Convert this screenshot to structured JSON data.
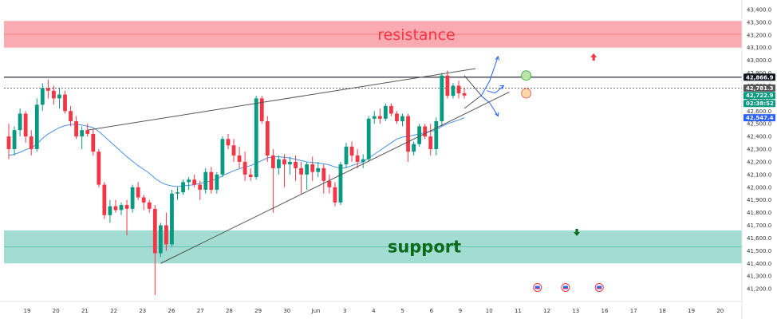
{
  "chart_data": {
    "type": "candlestick",
    "title": "",
    "xlabel": "",
    "ylabel": "",
    "ylim": [
      41100,
      43450
    ],
    "y_ticks": [
      "43,400.0",
      "43,300.0",
      "43,200.0",
      "43,100.0",
      "43,000.0",
      "42,900.0",
      "42,800.0",
      "42,700.0",
      "42,600.0",
      "42,500.0",
      "42,400.0",
      "42,300.0",
      "42,200.0",
      "42,100.0",
      "42,000.0",
      "41,900.0",
      "41,800.0",
      "41,700.0",
      "41,600.0",
      "41,500.0",
      "41,400.0",
      "41,300.0",
      "41,200.0"
    ],
    "y_tick_values": [
      43400,
      43300,
      43200,
      43100,
      43000,
      42900,
      42800,
      42700,
      42600,
      42500,
      42400,
      42300,
      42200,
      42100,
      42000,
      41900,
      41800,
      41700,
      41600,
      41500,
      41400,
      41300,
      41200
    ],
    "x_ticks": [
      "19",
      "20",
      "21",
      "22",
      "23",
      "26",
      "27",
      "28",
      "29",
      "30",
      "Jun",
      "3",
      "4",
      "5",
      "6",
      "9",
      "10",
      "11",
      "12",
      "13",
      "16",
      "17",
      "18",
      "19",
      "20"
    ],
    "price_tags": [
      {
        "text": "42,866.9",
        "value": 42866.9,
        "color": "#131722"
      },
      {
        "text": "42,781.3",
        "value": 42781.3,
        "color": "#555555"
      },
      {
        "text": "42,722.9",
        "value": 42722.9,
        "color": "#089981"
      },
      {
        "text": "02:38:52",
        "value": 42660,
        "color": "#089981"
      },
      {
        "text": "42,547.4",
        "value": 42547.4,
        "color": "#2962ff"
      }
    ],
    "zones": [
      {
        "label": "resistance",
        "from": 43100,
        "to": 43310,
        "color": "#f23645"
      },
      {
        "label": "support",
        "from": 41400,
        "to": 41660,
        "color": "#22ab94"
      }
    ],
    "horizontal_lines": [
      42866.9,
      42781.3
    ],
    "candles": [
      [
        42400,
        42500,
        42220,
        42300
      ],
      [
        42300,
        42480,
        42250,
        42450
      ],
      [
        42450,
        42620,
        42400,
        42580
      ],
      [
        42580,
        42600,
        42350,
        42400
      ],
      [
        42400,
        42450,
        42250,
        42300
      ],
      [
        42300,
        42700,
        42280,
        42650
      ],
      [
        42650,
        42820,
        42600,
        42780
      ],
      [
        42780,
        42850,
        42700,
        42760
      ],
      [
        42760,
        42800,
        42650,
        42700
      ],
      [
        42700,
        42780,
        42620,
        42730
      ],
      [
        42730,
        42760,
        42580,
        42600
      ],
      [
        42600,
        42640,
        42480,
        42520
      ],
      [
        42520,
        42560,
        42380,
        42400
      ],
      [
        42400,
        42480,
        42300,
        42450
      ],
      [
        42450,
        42500,
        42400,
        42420
      ],
      [
        42420,
        42460,
        42250,
        42280
      ],
      [
        42280,
        42300,
        42000,
        42020
      ],
      [
        42020,
        42040,
        41750,
        41780
      ],
      [
        41780,
        41900,
        41720,
        41850
      ],
      [
        41850,
        41900,
        41800,
        41820
      ],
      [
        41820,
        41880,
        41780,
        41860
      ],
      [
        41860,
        41900,
        41620,
        41830
      ],
      [
        41830,
        42020,
        41800,
        42000
      ],
      [
        42000,
        42040,
        41900,
        41920
      ],
      [
        41920,
        41940,
        41820,
        41880
      ],
      [
        41880,
        41900,
        41800,
        41830
      ],
      [
        41830,
        41860,
        41150,
        41480
      ],
      [
        41480,
        41720,
        41450,
        41700
      ],
      [
        41700,
        41800,
        41500,
        41550
      ],
      [
        41550,
        41980,
        41530,
        41950
      ],
      [
        41950,
        42000,
        41900,
        41960
      ],
      [
        41960,
        42060,
        41940,
        42040
      ],
      [
        42040,
        42080,
        41980,
        42060
      ],
      [
        42060,
        42100,
        42000,
        42020
      ],
      [
        42020,
        42050,
        41900,
        41980
      ],
      [
        41980,
        42150,
        41950,
        42120
      ],
      [
        42120,
        42160,
        41950,
        41980
      ],
      [
        41980,
        42120,
        41950,
        42100
      ],
      [
        42100,
        42400,
        42080,
        42380
      ],
      [
        42380,
        42420,
        42300,
        42330
      ],
      [
        42330,
        42380,
        42200,
        42250
      ],
      [
        42250,
        42320,
        42150,
        42200
      ],
      [
        42200,
        42280,
        42050,
        42100
      ],
      [
        42100,
        42150,
        42050,
        42080
      ],
      [
        42080,
        42720,
        42060,
        42700
      ],
      [
        42700,
        42720,
        42500,
        42520
      ],
      [
        42520,
        42560,
        42200,
        42250
      ],
      [
        42250,
        42300,
        41800,
        42150
      ],
      [
        42150,
        42250,
        42100,
        42220
      ],
      [
        42220,
        42260,
        42000,
        42180
      ],
      [
        42180,
        42240,
        42100,
        42200
      ],
      [
        42200,
        42250,
        42050,
        42150
      ],
      [
        42150,
        42200,
        41950,
        42100
      ],
      [
        42100,
        42200,
        41980,
        42180
      ],
      [
        42180,
        42240,
        42050,
        42120
      ],
      [
        42120,
        42200,
        42080,
        42150
      ],
      [
        42150,
        42180,
        41950,
        42050
      ],
      [
        42050,
        42100,
        41950,
        42000
      ],
      [
        42000,
        42040,
        41850,
        41880
      ],
      [
        41880,
        42200,
        41860,
        42180
      ],
      [
        42180,
        42350,
        42150,
        42320
      ],
      [
        42320,
        42360,
        42200,
        42250
      ],
      [
        42250,
        42300,
        42150,
        42200
      ],
      [
        42200,
        42260,
        42150,
        42220
      ],
      [
        42220,
        42560,
        42200,
        42540
      ],
      [
        42540,
        42600,
        42500,
        42560
      ],
      [
        42560,
        42620,
        42500,
        42540
      ],
      [
        42540,
        42660,
        42520,
        42640
      ],
      [
        42640,
        42660,
        42560,
        42580
      ],
      [
        42580,
        42600,
        42500,
        42520
      ],
      [
        42520,
        42580,
        42480,
        42560
      ],
      [
        42560,
        42580,
        42200,
        42280
      ],
      [
        42280,
        42360,
        42250,
        42340
      ],
      [
        42340,
        42500,
        42320,
        42480
      ],
      [
        42480,
        42500,
        42380,
        42400
      ],
      [
        42400,
        42500,
        42250,
        42300
      ],
      [
        42300,
        42550,
        42250,
        42520
      ],
      [
        42520,
        42900,
        42480,
        42880
      ],
      [
        42880,
        42920,
        42700,
        42720
      ],
      [
        42720,
        42820,
        42700,
        42800
      ],
      [
        42800,
        42840,
        42700,
        42740
      ],
      [
        42740,
        42780,
        42700,
        42722.9
      ]
    ],
    "ma_line": [
      42250,
      42260,
      42275,
      42295,
      42310,
      42340,
      42385,
      42420,
      42445,
      42470,
      42485,
      42495,
      42495,
      42490,
      42480,
      42470,
      42440,
      42400,
      42360,
      42320,
      42280,
      42240,
      42205,
      42170,
      42140,
      42110,
      42070,
      42040,
      42020,
      42010,
      42005,
      42010,
      42015,
      42020,
      42030,
      42040,
      42050,
      42065,
      42090,
      42110,
      42130,
      42145,
      42160,
      42170,
      42190,
      42210,
      42230,
      42240,
      42240,
      42235,
      42230,
      42220,
      42210,
      42200,
      42195,
      42190,
      42185,
      42175,
      42160,
      42150,
      42155,
      42170,
      42185,
      42200,
      42230,
      42260,
      42290,
      42320,
      42350,
      42380,
      42395,
      42400,
      42410,
      42420,
      42430,
      42440,
      42450,
      42480,
      42500,
      42515,
      42530,
      42547.4
    ],
    "trendlines": [
      {
        "from_candle": 14,
        "from_value": 42450,
        "to_candle": 83,
        "to_value": 42935
      },
      {
        "from_candle": 27,
        "from_value": 41400,
        "to_candle": 89,
        "to_value": 42750
      }
    ],
    "projection_arrows": [
      {
        "from_candle": 84,
        "from_value": 42720,
        "to_candle": 87,
        "to_value": 43030
      },
      {
        "from_candle": 84,
        "from_value": 42720,
        "to_candle": 87,
        "to_value": 42560
      },
      {
        "from_candle": 85,
        "from_value": 42760,
        "to_candle": 88,
        "to_value": 42800
      }
    ],
    "triangle": {
      "top_start": [
        81,
        42880
      ],
      "bottom_start": [
        81,
        42620
      ],
      "apex": [
        84,
        42722.9
      ]
    },
    "markers": [
      {
        "type": "green-circle",
        "candle": 92,
        "value": 42880
      },
      {
        "type": "orange-circle",
        "candle": 92,
        "value": 42740
      },
      {
        "type": "red-arrow-up",
        "candle": 104,
        "value": 43030
      },
      {
        "type": "green-arrow-down",
        "candle": 101,
        "value": 41640
      }
    ],
    "event_flags": [
      {
        "candle": 94,
        "value": 41210
      },
      {
        "candle": 99,
        "value": 41210
      },
      {
        "candle": 105,
        "value": 41210
      }
    ]
  }
}
